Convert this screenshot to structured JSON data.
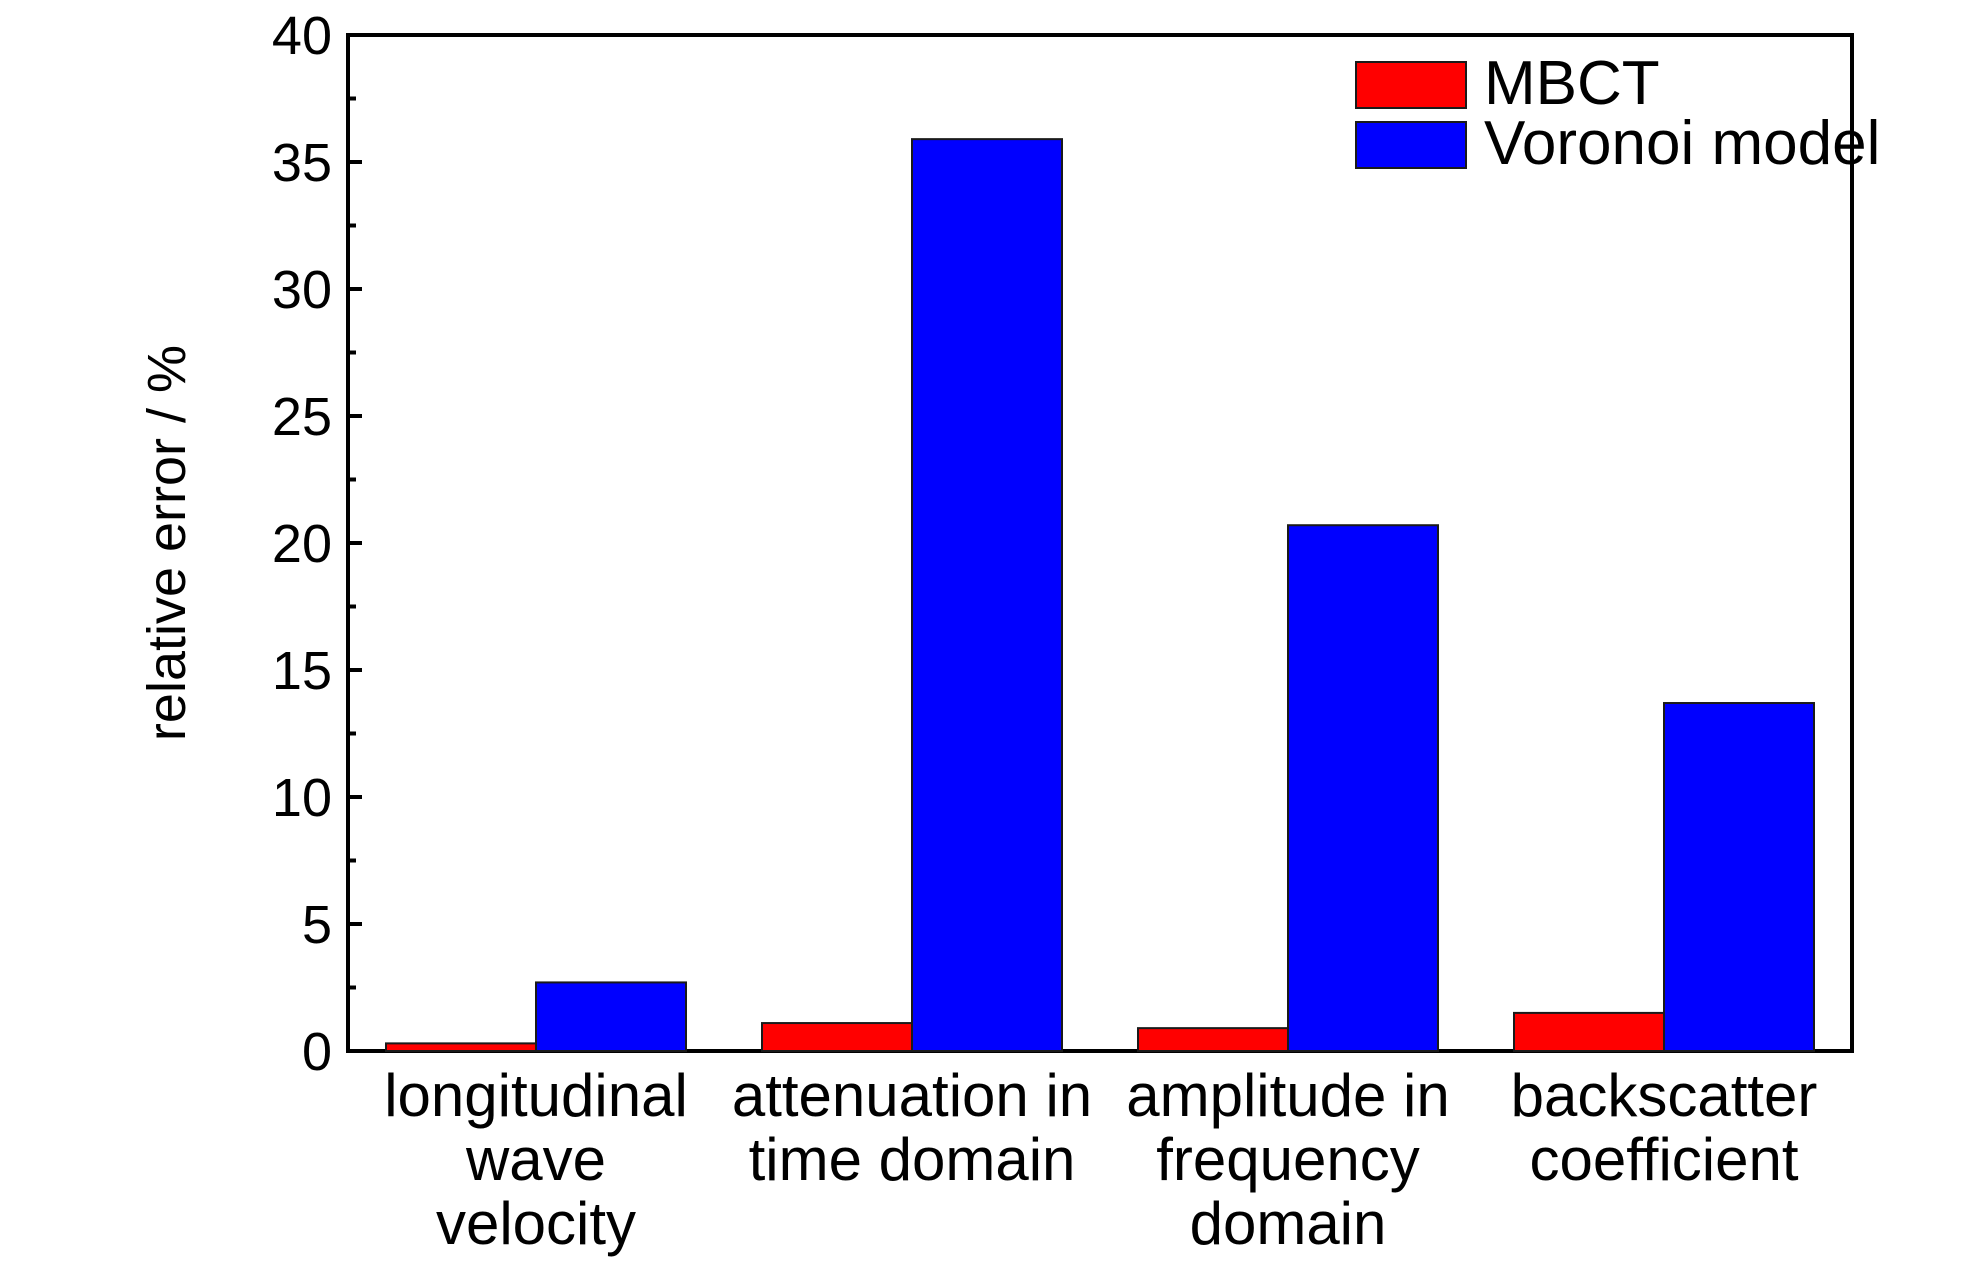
{
  "chart_data": {
    "type": "bar",
    "title": "",
    "xlabel": "",
    "ylabel": "relative error / %",
    "ylim": [
      0,
      40
    ],
    "yticks": [
      0,
      5,
      10,
      15,
      20,
      25,
      30,
      35,
      40
    ],
    "categories": [
      [
        "longitudinal",
        "wave",
        "velocity"
      ],
      [
        "attenuation in",
        "time domain"
      ],
      [
        "amplitude in",
        "frequency",
        "domain"
      ],
      [
        "backscatter",
        "coefficient"
      ]
    ],
    "series": [
      {
        "name": "MBCT",
        "color": "#ff0000",
        "values": [
          0.3,
          1.1,
          0.9,
          1.5
        ]
      },
      {
        "name": "Voronoi model",
        "color": "#0000ff",
        "values": [
          2.7,
          35.9,
          20.7,
          13.7
        ]
      }
    ],
    "legend_position": "top-right",
    "grid": false
  }
}
